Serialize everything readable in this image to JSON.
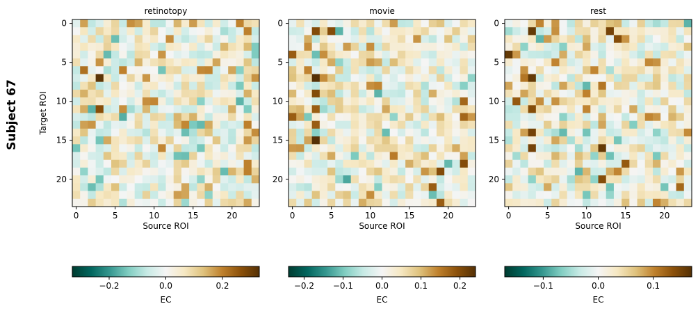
{
  "figure": {
    "suptitle": "Subject 67",
    "colors": {
      "cmap": [
        "#003c30",
        "#01665e",
        "#35978f",
        "#80cdc1",
        "#c7eae5",
        "#f5f5f5",
        "#f6e8c3",
        "#dfc27d",
        "#bf812d",
        "#8c510a",
        "#543005"
      ]
    }
  },
  "chart_data": [
    {
      "type": "heatmap",
      "title": "retinotopy",
      "xlabel": "Source ROI",
      "ylabel": "Target ROI",
      "n": 24,
      "xticks": [
        0,
        5,
        10,
        15,
        20
      ],
      "yticks": [
        0,
        5,
        10,
        15,
        20
      ],
      "seed": 67,
      "hot": [
        [
          6,
          1,
          0.22
        ],
        [
          7,
          3,
          0.32
        ],
        [
          11,
          3,
          0.27
        ],
        [
          12,
          6,
          -0.17
        ],
        [
          14,
          14,
          -0.15
        ],
        [
          17,
          14,
          -0.15
        ],
        [
          13,
          22,
          0.2
        ],
        [
          18,
          22,
          0.2
        ],
        [
          19,
          22,
          0.2
        ],
        [
          5,
          3,
          0.18
        ],
        [
          11,
          20,
          0.15
        ],
        [
          22,
          13,
          0.17
        ],
        [
          21,
          17,
          0.15
        ],
        [
          1,
          22,
          0.2
        ],
        [
          9,
          1,
          0.15
        ]
      ],
      "colorbar": {
        "vmin": -0.33,
        "vmax": 0.33,
        "ticks": [
          -0.2,
          0.0,
          0.2
        ],
        "ticklabels": [
          "−0.2",
          "0.0",
          "0.2"
        ],
        "label": "EC"
      }
    },
    {
      "type": "heatmap",
      "title": "movie",
      "xlabel": "Source ROI",
      "ylabel": "",
      "n": 24,
      "xticks": [
        0,
        5,
        10,
        15,
        20
      ],
      "yticks": [
        0,
        5,
        10,
        15,
        20
      ],
      "seed": 167,
      "hot": [
        [
          1,
          3,
          0.2
        ],
        [
          1,
          5,
          0.18
        ],
        [
          7,
          3,
          0.24
        ],
        [
          9,
          3,
          0.2
        ],
        [
          11,
          3,
          0.18
        ],
        [
          13,
          3,
          0.18
        ],
        [
          15,
          3,
          0.24
        ],
        [
          4,
          0,
          0.18
        ],
        [
          12,
          0,
          0.18
        ],
        [
          20,
          7,
          -0.13
        ],
        [
          19,
          19,
          0.2
        ],
        [
          21,
          18,
          0.18
        ],
        [
          23,
          19,
          0.18
        ],
        [
          18,
          22,
          0.2
        ],
        [
          10,
          22,
          0.17
        ],
        [
          12,
          22,
          0.17
        ],
        [
          17,
          13,
          0.15
        ],
        [
          1,
          5,
          0.2
        ]
      ],
      "colorbar": {
        "vmin": -0.24,
        "vmax": 0.24,
        "ticks": [
          -0.2,
          -0.1,
          0.0,
          0.1,
          0.2
        ],
        "ticklabels": [
          "−0.2",
          "−0.1",
          "0.0",
          "0.1",
          "0.2"
        ],
        "label": "EC"
      }
    },
    {
      "type": "heatmap",
      "title": "rest",
      "xlabel": "Source ROI",
      "ylabel": "",
      "n": 24,
      "xticks": [
        0,
        5,
        10,
        15,
        20
      ],
      "yticks": [
        0,
        5,
        10,
        15,
        20
      ],
      "seed": 267,
      "hot": [
        [
          1,
          3,
          0.16
        ],
        [
          4,
          0,
          0.16
        ],
        [
          7,
          3,
          0.16
        ],
        [
          7,
          2,
          0.11
        ],
        [
          11,
          3,
          0.14
        ],
        [
          14,
          3,
          0.15
        ],
        [
          16,
          3,
          0.15
        ],
        [
          16,
          12,
          0.16
        ],
        [
          1,
          13,
          0.15
        ],
        [
          2,
          14,
          0.14
        ],
        [
          10,
          1,
          0.13
        ],
        [
          20,
          12,
          0.14
        ],
        [
          18,
          15,
          0.13
        ],
        [
          19,
          14,
          0.1
        ],
        [
          6,
          11,
          0.1
        ],
        [
          8,
          12,
          0.11
        ],
        [
          11,
          10,
          0.1
        ],
        [
          21,
          22,
          0.12
        ],
        [
          23,
          19,
          0.1
        ],
        [
          14,
          7,
          -0.08
        ],
        [
          12,
          18,
          0.1
        ]
      ],
      "colorbar": {
        "vmin": -0.17,
        "vmax": 0.17,
        "ticks": [
          -0.1,
          0.0,
          0.1
        ],
        "ticklabels": [
          "−0.1",
          "0.0",
          "0.1"
        ],
        "label": "EC"
      }
    }
  ]
}
